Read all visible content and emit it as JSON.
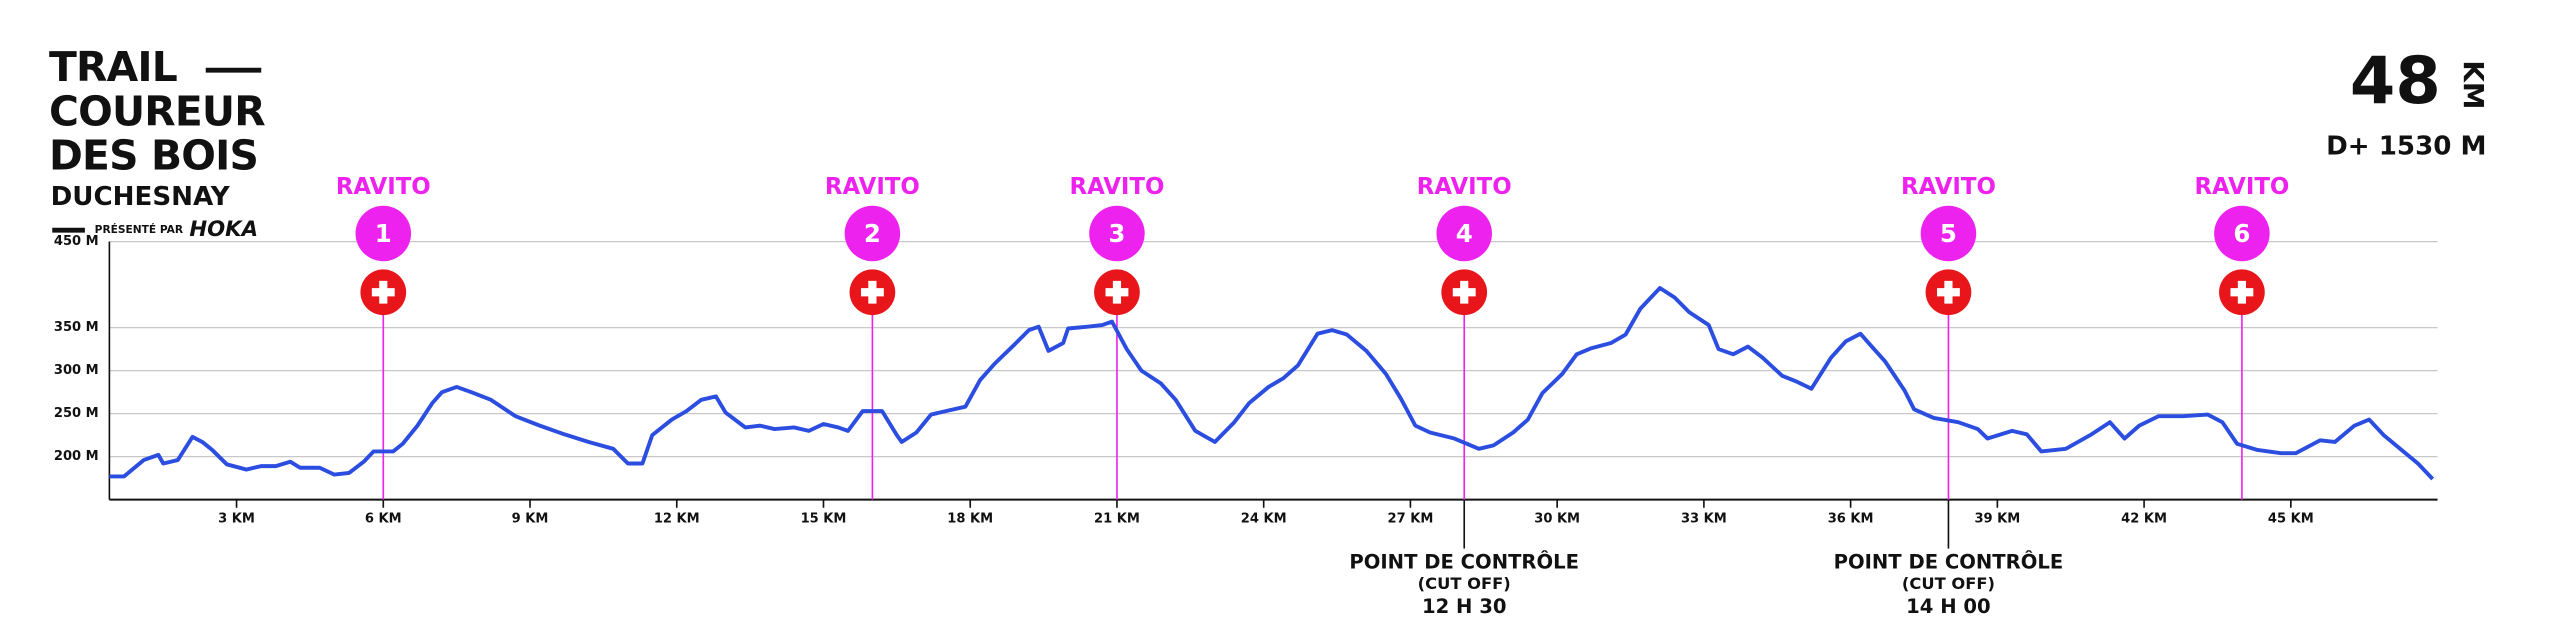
{
  "header": {
    "lines": [
      "TRAIL",
      "COUREUR",
      "DES BOIS"
    ],
    "subtitle": "DUCHESNAY",
    "presented": "PRÉSENTÉ PAR",
    "sponsor": "HOKA",
    "distance": "48",
    "distance_unit": "KM",
    "elevation_gain": "D+ 1530 M"
  },
  "chart_data": {
    "type": "line",
    "color": "#2b4de0",
    "grid": true,
    "x": [
      0.4,
      0.7,
      1.1,
      1.4,
      1.5,
      1.8,
      2.1,
      2.3,
      2.5,
      2.8,
      3.2,
      3.5,
      3.8,
      4.1,
      4.3,
      4.7,
      5.0,
      5.3,
      5.6,
      5.8,
      6.2,
      6.4,
      6.7,
      7.0,
      7.2,
      7.5,
      7.8,
      8.2,
      8.7,
      9.2,
      9.7,
      10.2,
      10.7,
      11.0,
      11.3,
      11.5,
      11.9,
      12.2,
      12.5,
      12.8,
      13.0,
      13.4,
      13.7,
      14.0,
      14.4,
      14.7,
      15.0,
      15.3,
      15.5,
      15.8,
      16.2,
      16.5,
      16.6,
      16.9,
      17.2,
      17.5,
      17.9,
      18.2,
      18.5,
      18.9,
      19.2,
      19.4,
      19.6,
      19.9,
      20.0,
      20.4,
      20.7,
      20.9,
      21.2,
      21.5,
      21.9,
      22.2,
      22.6,
      23.0,
      23.4,
      23.7,
      24.1,
      24.4,
      24.7,
      25.1,
      25.4,
      25.7,
      26.1,
      26.5,
      26.8,
      27.1,
      27.4,
      27.9,
      28.4,
      28.7,
      29.1,
      29.4,
      29.7,
      30.1,
      30.4,
      30.7,
      31.1,
      31.4,
      31.7,
      32.1,
      32.4,
      32.7,
      33.1,
      33.3,
      33.6,
      33.9,
      34.2,
      34.6,
      34.9,
      35.2,
      35.6,
      35.9,
      36.2,
      36.4,
      36.7,
      37.1,
      37.3,
      37.7,
      38.2,
      38.6,
      38.8,
      39.3,
      39.6,
      39.9,
      40.4,
      40.9,
      41.3,
      41.6,
      41.9,
      42.3,
      42.8,
      43.3,
      43.6,
      43.9,
      44.3,
      44.8,
      45.1,
      45.6,
      45.9,
      46.3,
      46.6,
      46.9,
      47.3,
      47.6,
      47.9
    ],
    "values": [
      177,
      177,
      196,
      202,
      192,
      196,
      223,
      217,
      208,
      191,
      185,
      189,
      189,
      194,
      187,
      187,
      179,
      181,
      194,
      206,
      206,
      215,
      236,
      262,
      275,
      281,
      275,
      266,
      247,
      236,
      226,
      217,
      209,
      192,
      192,
      225,
      243,
      253,
      266,
      270,
      251,
      234,
      236,
      232,
      234,
      230,
      238,
      234,
      230,
      253,
      253,
      225,
      217,
      228,
      249,
      253,
      258,
      289,
      308,
      330,
      347,
      351,
      323,
      332,
      349,
      351,
      353,
      357,
      325,
      300,
      285,
      266,
      230,
      217,
      240,
      262,
      281,
      291,
      306,
      343,
      347,
      342,
      323,
      296,
      268,
      236,
      228,
      221,
      209,
      213,
      228,
      243,
      274,
      296,
      319,
      326,
      332,
      342,
      372,
      396,
      385,
      368,
      353,
      325,
      319,
      328,
      315,
      294,
      287,
      279,
      315,
      334,
      343,
      330,
      311,
      277,
      255,
      245,
      240,
      232,
      221,
      230,
      226,
      206,
      209,
      225,
      240,
      221,
      236,
      247,
      247,
      249,
      240,
      215,
      208,
      204,
      204,
      219,
      217,
      236,
      243,
      225,
      206,
      192,
      174
    ],
    "xlim": [
      0.4,
      48
    ],
    "ylim": [
      150,
      450
    ],
    "xticks": [
      {
        "value": 3,
        "label": "3 KM"
      },
      {
        "value": 6,
        "label": "6 KM"
      },
      {
        "value": 9,
        "label": "9 KM"
      },
      {
        "value": 12,
        "label": "12 KM"
      },
      {
        "value": 15,
        "label": "15 KM"
      },
      {
        "value": 18,
        "label": "18 KM"
      },
      {
        "value": 21,
        "label": "21 KM"
      },
      {
        "value": 24,
        "label": "24 KM"
      },
      {
        "value": 27,
        "label": "27 KM"
      },
      {
        "value": 30,
        "label": "30 KM"
      },
      {
        "value": 33,
        "label": "33 KM"
      },
      {
        "value": 36,
        "label": "36 KM"
      },
      {
        "value": 39,
        "label": "39 KM"
      },
      {
        "value": 42,
        "label": "42 KM"
      },
      {
        "value": 45,
        "label": "45 KM"
      }
    ],
    "yticks": [
      {
        "value": 200,
        "label": "200 M"
      },
      {
        "value": 250,
        "label": "250 M"
      },
      {
        "value": 300,
        "label": "300 M"
      },
      {
        "value": 350,
        "label": "350 M"
      },
      {
        "value": 450,
        "label": "450 M"
      }
    ],
    "station_color": "#ee22ee",
    "aid_color": "#e8161b",
    "stations": [
      {
        "label": "RAVITO",
        "number": 1,
        "km": 6
      },
      {
        "label": "RAVITO",
        "number": 2,
        "km": 16
      },
      {
        "label": "RAVITO",
        "number": 3,
        "km": 21
      },
      {
        "label": "RAVITO",
        "number": 4,
        "km": 28.1
      },
      {
        "label": "RAVITO",
        "number": 5,
        "km": 38
      },
      {
        "label": "RAVITO",
        "number": 6,
        "km": 44
      }
    ],
    "checkpoints": [
      {
        "km": 28.1,
        "label": "POINT DE CONTRÔLE",
        "note": "(CUT OFF)",
        "time": "12 H 30"
      },
      {
        "km": 38,
        "label": "POINT DE CONTRÔLE",
        "note": "(CUT OFF)",
        "time": "14 H 00"
      }
    ]
  }
}
